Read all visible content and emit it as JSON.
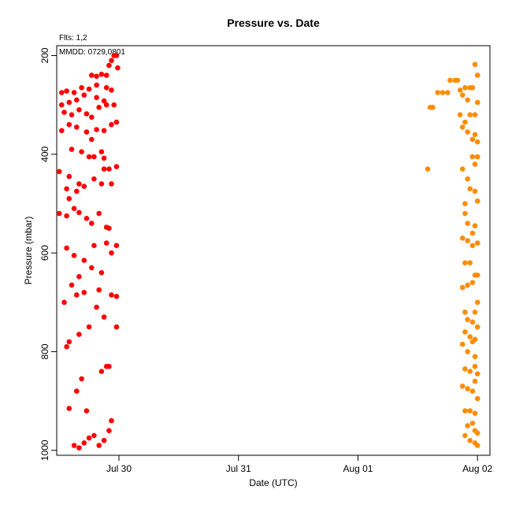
{
  "chart_data": {
    "type": "scatter",
    "title": "Pressure  vs. Date",
    "flts_label": "Flts: 1,2",
    "mmdd_label": "MMDD: 0729,0801",
    "xlabel": "Date (UTC)",
    "ylabel": "Pressure (mbar)",
    "y_inverted": true,
    "ylim": [
      1010,
      180
    ],
    "xlim": [
      "2022-07-29 11:30",
      "2022-08-02 02:30"
    ],
    "x_ticks": [
      {
        "label": "Jul 30",
        "value": "2022-07-30 00:00"
      },
      {
        "label": "Jul 31",
        "value": "2022-07-31 00:00"
      },
      {
        "label": "Aug 01",
        "value": "2022-08-01 00:00"
      },
      {
        "label": "Aug 02",
        "value": "2022-08-02 00:00"
      }
    ],
    "y_ticks": [
      200,
      400,
      600,
      800,
      1000
    ],
    "grid": false,
    "series": [
      {
        "color": "#ff0000",
        "points": [
          [
            "2022-07-29 15:00",
            990
          ],
          [
            "2022-07-29 16:00",
            995
          ],
          [
            "2022-07-29 17:00",
            985
          ],
          [
            "2022-07-29 18:00",
            975
          ],
          [
            "2022-07-29 19:00",
            970
          ],
          [
            "2022-07-29 20:00",
            990
          ],
          [
            "2022-07-29 21:00",
            980
          ],
          [
            "2022-07-29 22:00",
            960
          ],
          [
            "2022-07-29 22:30",
            940
          ],
          [
            "2022-07-29 17:30",
            920
          ],
          [
            "2022-07-29 14:00",
            915
          ],
          [
            "2022-07-29 15:30",
            880
          ],
          [
            "2022-07-29 16:30",
            855
          ],
          [
            "2022-07-29 20:30",
            840
          ],
          [
            "2022-07-29 21:30",
            830
          ],
          [
            "2022-07-29 22:00",
            830
          ],
          [
            "2022-07-29 13:30",
            790
          ],
          [
            "2022-07-29 14:00",
            780
          ],
          [
            "2022-07-29 16:00",
            765
          ],
          [
            "2022-07-29 18:00",
            750
          ],
          [
            "2022-07-29 19:30",
            710
          ],
          [
            "2022-07-29 21:00",
            730
          ],
          [
            "2022-07-29 23:30",
            750
          ],
          [
            "2022-07-29 13:00",
            700
          ],
          [
            "2022-07-29 15:30",
            685
          ],
          [
            "2022-07-29 17:00",
            680
          ],
          [
            "2022-07-29 20:00",
            675
          ],
          [
            "2022-07-29 22:30",
            685
          ],
          [
            "2022-07-29 23:30",
            688
          ],
          [
            "2022-07-29 14:30",
            665
          ],
          [
            "2022-07-29 16:00",
            648
          ],
          [
            "2022-07-29 18:30",
            630
          ],
          [
            "2022-07-29 20:30",
            640
          ],
          [
            "2022-07-29 13:30",
            590
          ],
          [
            "2022-07-29 15:00",
            605
          ],
          [
            "2022-07-29 17:00",
            615
          ],
          [
            "2022-07-29 19:00",
            585
          ],
          [
            "2022-07-29 21:30",
            580
          ],
          [
            "2022-07-29 22:30",
            600
          ],
          [
            "2022-07-29 23:30",
            585
          ],
          [
            "2022-07-29 12:00",
            520
          ],
          [
            "2022-07-29 13:30",
            525
          ],
          [
            "2022-07-29 15:00",
            510
          ],
          [
            "2022-07-29 16:00",
            518
          ],
          [
            "2022-07-29 17:30",
            530
          ],
          [
            "2022-07-29 18:30",
            540
          ],
          [
            "2022-07-29 20:00",
            520
          ],
          [
            "2022-07-29 21:30",
            548
          ],
          [
            "2022-07-29 22:00",
            550
          ],
          [
            "2022-07-29 14:00",
            490
          ],
          [
            "2022-07-29 15:30",
            475
          ],
          [
            "2022-07-29 17:00",
            465
          ],
          [
            "2022-07-29 19:00",
            450
          ],
          [
            "2022-07-29 20:30",
            460
          ],
          [
            "2022-07-29 22:30",
            460
          ],
          [
            "2022-07-29 23:30",
            425
          ],
          [
            "2022-07-29 12:00",
            435
          ],
          [
            "2022-07-29 13:30",
            470
          ],
          [
            "2022-07-29 14:00",
            445
          ],
          [
            "2022-07-29 16:00",
            460
          ],
          [
            "2022-07-29 21:00",
            430
          ],
          [
            "2022-07-29 22:00",
            430
          ],
          [
            "2022-07-29 14:30",
            390
          ],
          [
            "2022-07-29 16:30",
            395
          ],
          [
            "2022-07-29 18:00",
            405
          ],
          [
            "2022-07-29 19:00",
            405
          ],
          [
            "2022-07-29 20:30",
            395
          ],
          [
            "2022-07-29 21:00",
            408
          ],
          [
            "2022-07-29 12:30",
            352
          ],
          [
            "2022-07-29 14:00",
            340
          ],
          [
            "2022-07-29 15:30",
            345
          ],
          [
            "2022-07-29 17:30",
            355
          ],
          [
            "2022-07-29 18:30",
            370
          ],
          [
            "2022-07-29 19:30",
            350
          ],
          [
            "2022-07-29 21:00",
            352
          ],
          [
            "2022-07-29 23:30",
            335
          ],
          [
            "2022-07-29 13:00",
            315
          ],
          [
            "2022-07-29 14:30",
            320
          ],
          [
            "2022-07-29 16:00",
            310
          ],
          [
            "2022-07-29 17:30",
            318
          ],
          [
            "2022-07-29 18:30",
            325
          ],
          [
            "2022-07-29 20:00",
            305
          ],
          [
            "2022-07-29 21:30",
            300
          ],
          [
            "2022-07-29 22:30",
            340
          ],
          [
            "2022-07-29 12:30",
            300
          ],
          [
            "2022-07-29 14:00",
            295
          ],
          [
            "2022-07-29 15:30",
            290
          ],
          [
            "2022-07-29 17:00",
            280
          ],
          [
            "2022-07-29 19:30",
            285
          ],
          [
            "2022-07-29 21:00",
            292
          ],
          [
            "2022-07-29 23:00",
            300
          ],
          [
            "2022-07-29 12:30",
            275
          ],
          [
            "2022-07-29 13:30",
            272
          ],
          [
            "2022-07-29 15:00",
            275
          ],
          [
            "2022-07-29 16:30",
            265
          ],
          [
            "2022-07-29 18:00",
            268
          ],
          [
            "2022-07-29 19:30",
            260
          ],
          [
            "2022-07-29 21:30",
            265
          ],
          [
            "2022-07-29 22:30",
            270
          ],
          [
            "2022-07-29 18:30",
            240
          ],
          [
            "2022-07-29 19:30",
            242
          ],
          [
            "2022-07-29 20:30",
            238
          ],
          [
            "2022-07-29 21:30",
            240
          ],
          [
            "2022-07-29 22:00",
            220
          ],
          [
            "2022-07-29 22:30",
            210
          ],
          [
            "2022-07-29 23:00",
            200
          ],
          [
            "2022-07-29 23:30",
            200
          ],
          [
            "2022-07-29 23:45",
            225
          ]
        ]
      },
      {
        "color": "#ff8c00",
        "points": [
          [
            "2022-08-01 14:00",
            430
          ],
          [
            "2022-08-01 14:30",
            305
          ],
          [
            "2022-08-01 15:00",
            305
          ],
          [
            "2022-08-01 16:00",
            275
          ],
          [
            "2022-08-01 17:00",
            275
          ],
          [
            "2022-08-01 18:00",
            275
          ],
          [
            "2022-08-01 18:30",
            250
          ],
          [
            "2022-08-01 19:30",
            250
          ],
          [
            "2022-08-01 20:00",
            250
          ],
          [
            "2022-08-01 20:30",
            270
          ],
          [
            "2022-08-01 21:30",
            265
          ],
          [
            "2022-08-01 23:30",
            218
          ],
          [
            "2022-08-02 00:00",
            240
          ],
          [
            "2022-08-01 21:00",
            280
          ],
          [
            "2022-08-01 22:00",
            290
          ],
          [
            "2022-08-01 22:30",
            265
          ],
          [
            "2022-08-01 23:00",
            265
          ],
          [
            "2022-08-01 20:30",
            320
          ],
          [
            "2022-08-01 21:00",
            345
          ],
          [
            "2022-08-01 22:30",
            320
          ],
          [
            "2022-08-01 23:30",
            320
          ],
          [
            "2022-08-02 00:00",
            295
          ],
          [
            "2022-08-01 21:30",
            335
          ],
          [
            "2022-08-01 22:00",
            355
          ],
          [
            "2022-08-01 23:00",
            370
          ],
          [
            "2022-08-01 23:30",
            360
          ],
          [
            "2022-08-02 00:00",
            375
          ],
          [
            "2022-08-01 21:00",
            430
          ],
          [
            "2022-08-01 22:00",
            450
          ],
          [
            "2022-08-01 23:00",
            405
          ],
          [
            "2022-08-01 23:30",
            420
          ],
          [
            "2022-08-02 00:00",
            405
          ],
          [
            "2022-08-01 21:30",
            500
          ],
          [
            "2022-08-01 22:30",
            470
          ],
          [
            "2022-08-01 23:30",
            475
          ],
          [
            "2022-08-02 00:00",
            495
          ],
          [
            "2022-08-01 21:30",
            520
          ],
          [
            "2022-08-01 22:00",
            540
          ],
          [
            "2022-08-01 23:00",
            560
          ],
          [
            "2022-08-01 23:30",
            545
          ],
          [
            "2022-08-01 21:00",
            570
          ],
          [
            "2022-08-01 22:00",
            575
          ],
          [
            "2022-08-01 23:00",
            585
          ],
          [
            "2022-08-02 00:00",
            580
          ],
          [
            "2022-08-01 21:30",
            620
          ],
          [
            "2022-08-01 22:30",
            620
          ],
          [
            "2022-08-01 23:30",
            645
          ],
          [
            "2022-08-02 00:00",
            645
          ],
          [
            "2022-08-01 21:00",
            670
          ],
          [
            "2022-08-01 22:00",
            665
          ],
          [
            "2022-08-01 23:00",
            660
          ],
          [
            "2022-08-02 00:00",
            700
          ],
          [
            "2022-08-01 21:30",
            720
          ],
          [
            "2022-08-01 22:00",
            735
          ],
          [
            "2022-08-01 23:00",
            740
          ],
          [
            "2022-08-01 23:30",
            720
          ],
          [
            "2022-08-02 00:00",
            750
          ],
          [
            "2022-08-01 21:30",
            760
          ],
          [
            "2022-08-01 22:30",
            770
          ],
          [
            "2022-08-01 23:30",
            775
          ],
          [
            "2022-08-01 21:00",
            785
          ],
          [
            "2022-08-01 22:00",
            800
          ],
          [
            "2022-08-01 23:00",
            780
          ],
          [
            "2022-08-01 23:30",
            810
          ],
          [
            "2022-08-01 21:30",
            835
          ],
          [
            "2022-08-01 22:30",
            840
          ],
          [
            "2022-08-01 23:30",
            830
          ],
          [
            "2022-08-02 00:00",
            845
          ],
          [
            "2022-08-01 21:00",
            870
          ],
          [
            "2022-08-01 22:00",
            875
          ],
          [
            "2022-08-01 23:00",
            880
          ],
          [
            "2022-08-01 23:30",
            860
          ],
          [
            "2022-08-02 00:00",
            895
          ],
          [
            "2022-08-01 21:30",
            920
          ],
          [
            "2022-08-01 22:30",
            920
          ],
          [
            "2022-08-01 23:30",
            925
          ],
          [
            "2022-08-01 22:00",
            950
          ],
          [
            "2022-08-01 23:00",
            945
          ],
          [
            "2022-08-01 23:30",
            960
          ],
          [
            "2022-08-02 00:00",
            965
          ],
          [
            "2022-08-01 21:30",
            970
          ],
          [
            "2022-08-01 22:30",
            980
          ],
          [
            "2022-08-01 23:30",
            985
          ],
          [
            "2022-08-02 00:00",
            990
          ]
        ]
      }
    ]
  }
}
